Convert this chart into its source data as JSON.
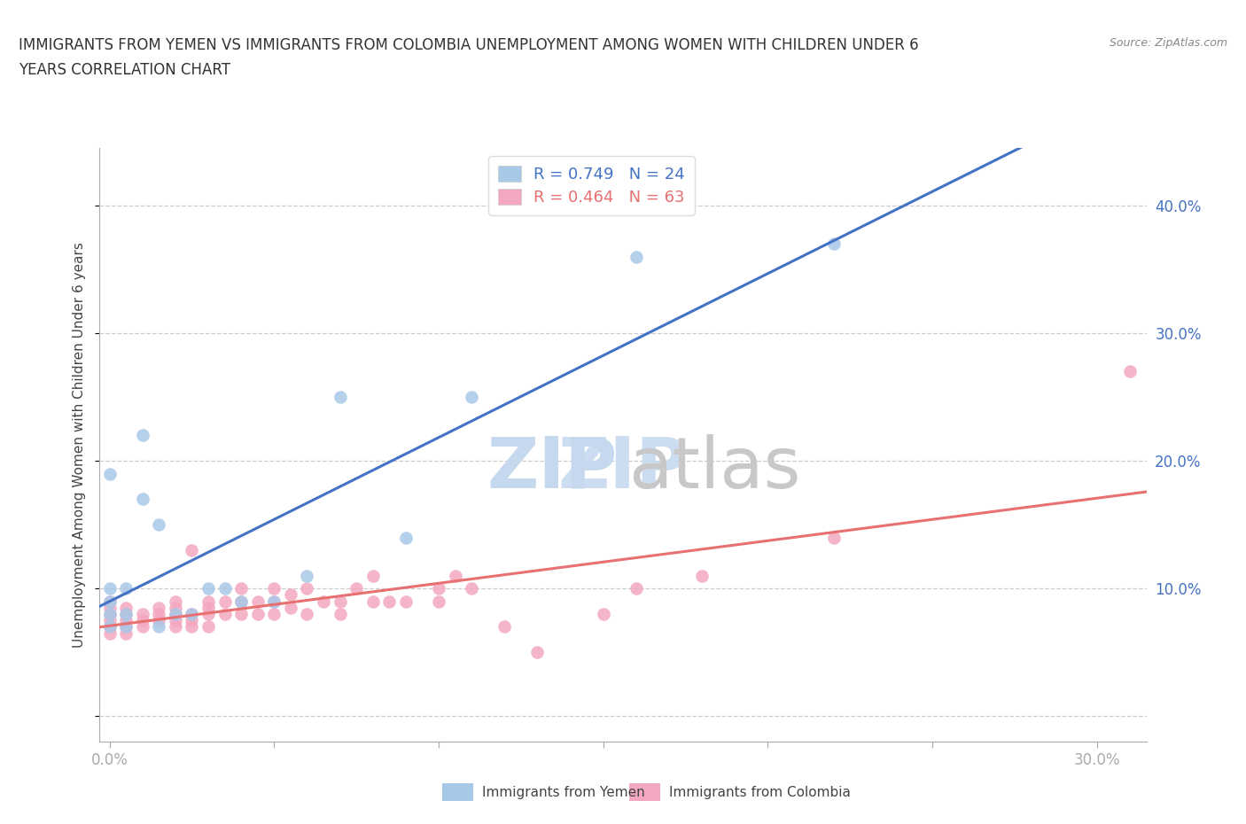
{
  "title_line1": "IMMIGRANTS FROM YEMEN VS IMMIGRANTS FROM COLOMBIA UNEMPLOYMENT AMONG WOMEN WITH CHILDREN UNDER 6",
  "title_line2": "YEARS CORRELATION CHART",
  "source": "Source: ZipAtlas.com",
  "ylabel": "Unemployment Among Women with Children Under 6 years",
  "xlim": [
    -0.003,
    0.315
  ],
  "ylim": [
    -0.02,
    0.445
  ],
  "x_ticks": [
    0.0,
    0.05,
    0.1,
    0.15,
    0.2,
    0.25,
    0.3
  ],
  "x_tick_labels_bottom": [
    "0.0%",
    "",
    "",
    "",
    "",
    "",
    "30.0%"
  ],
  "y_ticks_right": [
    0.1,
    0.2,
    0.3,
    0.4
  ],
  "y_tick_labels_right": [
    "10.0%",
    "20.0%",
    "30.0%",
    "40.0%"
  ],
  "yemen_color": "#a8c8e8",
  "colombia_color": "#f4a8c0",
  "yemen_line_color": "#4472c4",
  "colombia_line_color": "#e87070",
  "legend_R_yemen": "0.749",
  "legend_N_yemen": "24",
  "legend_R_colombia": "0.464",
  "legend_N_colombia": "63",
  "watermark_zip": "ZIP",
  "watermark_atlas": "atlas",
  "legend_label_yemen": "Immigrants from Yemen",
  "legend_label_colombia": "Immigrants from Colombia",
  "yemen_x": [
    0.0,
    0.0,
    0.0,
    0.0,
    0.0,
    0.005,
    0.005,
    0.005,
    0.01,
    0.01,
    0.015,
    0.015,
    0.02,
    0.025,
    0.03,
    0.035,
    0.04,
    0.05,
    0.06,
    0.07,
    0.09,
    0.11,
    0.16,
    0.22
  ],
  "yemen_y": [
    0.07,
    0.08,
    0.09,
    0.1,
    0.19,
    0.07,
    0.08,
    0.1,
    0.17,
    0.22,
    0.07,
    0.15,
    0.08,
    0.08,
    0.1,
    0.1,
    0.09,
    0.09,
    0.11,
    0.25,
    0.14,
    0.25,
    0.36,
    0.37
  ],
  "colombia_x": [
    0.0,
    0.0,
    0.0,
    0.0,
    0.0,
    0.0,
    0.005,
    0.005,
    0.005,
    0.005,
    0.005,
    0.01,
    0.01,
    0.01,
    0.015,
    0.015,
    0.015,
    0.02,
    0.02,
    0.02,
    0.02,
    0.02,
    0.025,
    0.025,
    0.025,
    0.025,
    0.03,
    0.03,
    0.03,
    0.03,
    0.035,
    0.035,
    0.04,
    0.04,
    0.04,
    0.045,
    0.045,
    0.05,
    0.05,
    0.05,
    0.055,
    0.055,
    0.06,
    0.06,
    0.065,
    0.07,
    0.07,
    0.075,
    0.08,
    0.08,
    0.085,
    0.09,
    0.1,
    0.1,
    0.105,
    0.11,
    0.12,
    0.13,
    0.15,
    0.16,
    0.18,
    0.22,
    0.31
  ],
  "colombia_y": [
    0.065,
    0.07,
    0.075,
    0.08,
    0.085,
    0.09,
    0.065,
    0.07,
    0.075,
    0.08,
    0.085,
    0.07,
    0.075,
    0.08,
    0.075,
    0.08,
    0.085,
    0.07,
    0.075,
    0.08,
    0.085,
    0.09,
    0.07,
    0.075,
    0.08,
    0.13,
    0.07,
    0.08,
    0.085,
    0.09,
    0.08,
    0.09,
    0.08,
    0.09,
    0.1,
    0.08,
    0.09,
    0.08,
    0.09,
    0.1,
    0.085,
    0.095,
    0.08,
    0.1,
    0.09,
    0.08,
    0.09,
    0.1,
    0.09,
    0.11,
    0.09,
    0.09,
    0.09,
    0.1,
    0.11,
    0.1,
    0.07,
    0.05,
    0.08,
    0.1,
    0.11,
    0.14,
    0.27
  ]
}
